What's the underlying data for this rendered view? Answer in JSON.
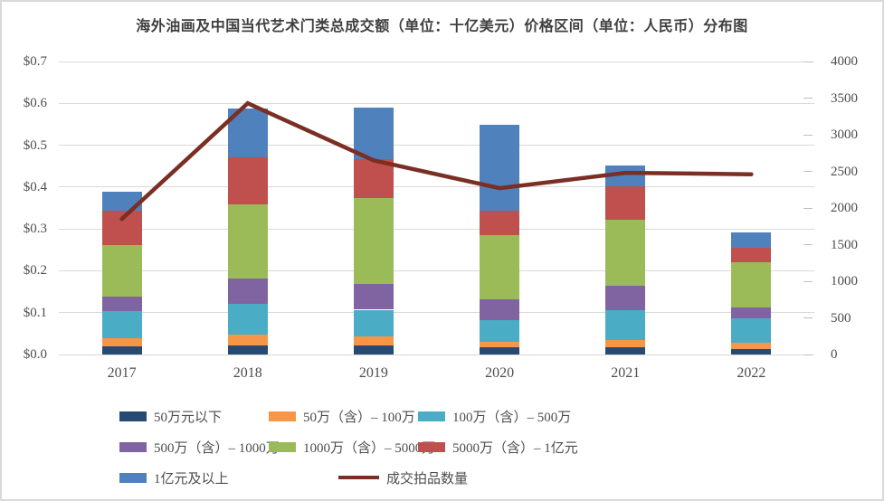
{
  "chart_data": {
    "type": "bar",
    "subtype": "stacked-bar-with-line-combo",
    "title": "海外油画及中国当代艺术门类总成交额（单位：十亿美元）价格区间（单位：人民币）分布图",
    "categories": [
      "2017",
      "2018",
      "2019",
      "2020",
      "2021",
      "2022"
    ],
    "series": [
      {
        "name": "50万元以下",
        "color": "#274a73",
        "values": [
          0.02,
          0.022,
          0.022,
          0.017,
          0.017,
          0.013
        ]
      },
      {
        "name": "50万（含）– 100万",
        "color": "#f79646",
        "values": [
          0.019,
          0.025,
          0.021,
          0.014,
          0.017,
          0.016
        ]
      },
      {
        "name": "100万（含）– 500万",
        "color": "#4bacc6",
        "values": [
          0.064,
          0.073,
          0.064,
          0.052,
          0.072,
          0.058
        ]
      },
      {
        "name": "500万（含）– 1000万",
        "color": "#8064a2",
        "values": [
          0.035,
          0.061,
          0.061,
          0.048,
          0.058,
          0.025
        ]
      },
      {
        "name": "1000万（含）– 5000万",
        "color": "#9bbb59",
        "values": [
          0.123,
          0.177,
          0.205,
          0.155,
          0.158,
          0.108
        ]
      },
      {
        "name": "5000万（含）– 1亿元",
        "color": "#c0504d",
        "values": [
          0.083,
          0.114,
          0.094,
          0.058,
          0.079,
          0.036
        ]
      },
      {
        "name": "1亿元及以上",
        "color": "#4f81bd",
        "values": [
          0.045,
          0.115,
          0.123,
          0.205,
          0.05,
          0.036
        ]
      }
    ],
    "line_series": {
      "name": "成交拍品数量",
      "color": "#7b2e24",
      "values": [
        1850,
        3430,
        2650,
        2270,
        2480,
        2460
      ]
    },
    "left_axis": {
      "ticks": [
        "$0.0",
        "$0.1",
        "$0.2",
        "$0.3",
        "$0.4",
        "$0.5",
        "$0.6",
        "$0.7"
      ],
      "min": 0,
      "max": 0.7
    },
    "right_axis": {
      "ticks": [
        "0",
        "500",
        "1000",
        "1500",
        "2000",
        "2500",
        "3000",
        "3500",
        "4000"
      ],
      "min": 0,
      "max": 4000
    },
    "grid": true,
    "legend_position": "bottom"
  }
}
